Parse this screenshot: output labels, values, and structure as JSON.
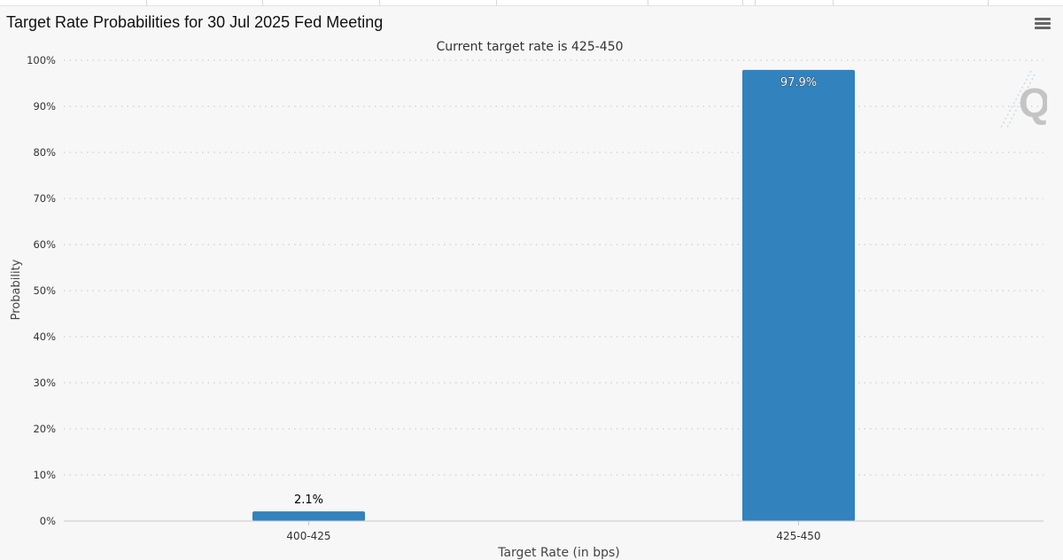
{
  "page": {
    "title": "Target Rate Probabilities for 30 Jul 2025 Fed Meeting",
    "menu_icon": "hamburger-menu-icon",
    "watermark_icon": "q-logo-icon",
    "watermark_letter": "Q"
  },
  "colors": {
    "bar": "#3182bd",
    "grid": "#cfcfcf",
    "axis_text": "#333333",
    "background": "#f7f7f7"
  },
  "chart_data": {
    "type": "bar",
    "title": "Target Rate Probabilities for 30 Jul 2025 Fed Meeting",
    "subtitle": "Current target rate is 425-450",
    "xlabel": "Target Rate (in bps)",
    "ylabel": "Probability",
    "categories": [
      "400-425",
      "425-450"
    ],
    "values": [
      2.1,
      97.9
    ],
    "data_labels": [
      "2.1%",
      "97.9%"
    ],
    "ylim": [
      0,
      100
    ],
    "yticks": [
      0,
      10,
      20,
      30,
      40,
      50,
      60,
      70,
      80,
      90,
      100
    ],
    "ytick_labels": [
      "0%",
      "10%",
      "20%",
      "30%",
      "40%",
      "50%",
      "60%",
      "70%",
      "80%",
      "90%",
      "100%"
    ],
    "grid": true,
    "legend": "none"
  }
}
